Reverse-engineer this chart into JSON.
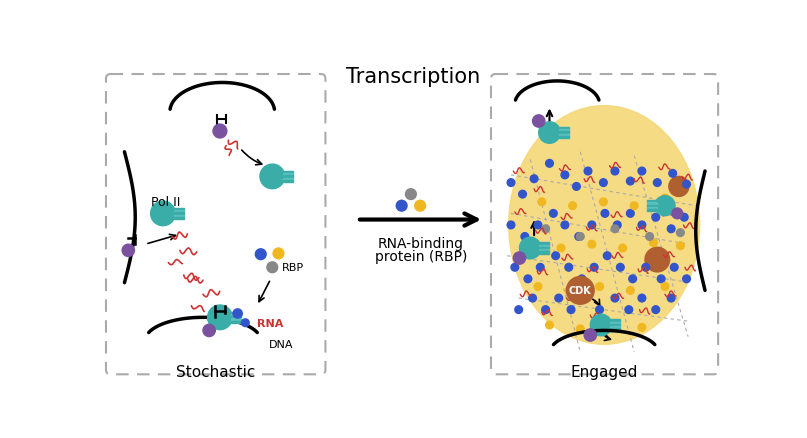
{
  "title": "Transcription",
  "left_label": "Stochastic",
  "right_label": "Engaged",
  "middle_label1": "RNA-binding",
  "middle_label2": "protein (RBP)",
  "label_pol2": "Pol II",
  "label_rbp": "RBP",
  "label_rna": "RNA",
  "label_dna": "DNA",
  "label_cdk": "CDK",
  "color_teal": "#3aada8",
  "color_purple": "#7b52a0",
  "color_red": "#cc3333",
  "color_blue": "#3355cc",
  "color_yellow": "#f0b820",
  "color_gray": "#888888",
  "color_brown": "#b06030",
  "color_yellow_bg": "#f5d878",
  "bg_color": "#ffffff",
  "border_color": "#aaaaaa",
  "fig_w": 8.07,
  "fig_h": 4.39,
  "dpi": 100
}
